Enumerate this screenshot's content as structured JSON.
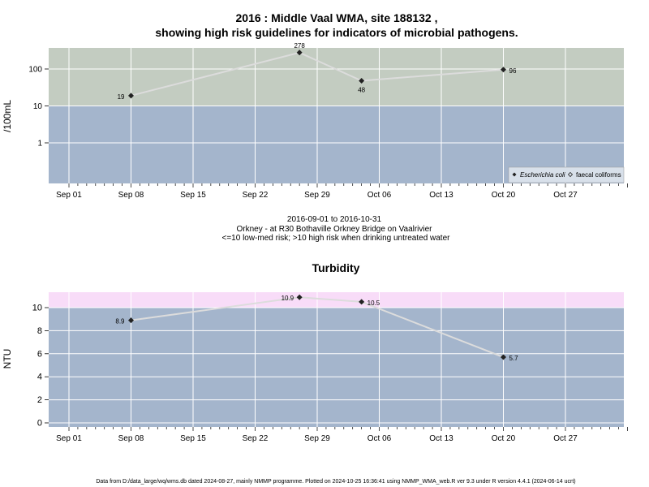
{
  "chart_data": [
    {
      "type": "line",
      "title": "2016 : Middle Vaal WMA, site 188132 ,",
      "subtitle": "showing high risk guidelines for indicators of microbial pathogens.",
      "ylabel": "/100mL",
      "xlabel": "",
      "yscale": "log",
      "x_ticks": [
        "Sep 01",
        "Sep 08",
        "Sep 15",
        "Sep 22",
        "Sep 29",
        "Oct 06",
        "Oct 13",
        "Oct 20",
        "Oct 27"
      ],
      "y_ticks": [
        {
          "value": 1,
          "label": "1"
        },
        {
          "value": 10,
          "label": "10"
        },
        {
          "value": 100,
          "label": "100"
        }
      ],
      "threshold": 10,
      "colors": {
        "below": "#a4b5cc",
        "above": "#c3ccc1",
        "line": "#dcdcdc",
        "marker": "#222222"
      },
      "series": [
        {
          "name": "Escherichia coli",
          "marker": "filled-diamond",
          "points": [
            {
              "x": "2016-09-08",
              "y": 19,
              "label": "19"
            },
            {
              "x": "2016-09-27",
              "y": 278,
              "label": "278"
            },
            {
              "x": "2016-10-04",
              "y": 48,
              "label": "48"
            },
            {
              "x": "2016-10-20",
              "y": 96,
              "label": "96"
            }
          ]
        },
        {
          "name": "faecal coliforms",
          "marker": "open-diamond",
          "points": []
        }
      ],
      "legend": "bottom-right",
      "grid": true
    },
    {
      "type": "line",
      "title": "Turbidity",
      "ylabel": "NTU",
      "xlabel": "",
      "ylim": [
        -0.5,
        11.4
      ],
      "x_ticks": [
        "Sep 01",
        "Sep 08",
        "Sep 15",
        "Sep 22",
        "Sep 29",
        "Oct 06",
        "Oct 13",
        "Oct 20",
        "Oct 27"
      ],
      "y_ticks": [
        {
          "value": 0,
          "label": "0"
        },
        {
          "value": 2,
          "label": "2"
        },
        {
          "value": 4,
          "label": "4"
        },
        {
          "value": 6,
          "label": "6"
        },
        {
          "value": 8,
          "label": "8"
        },
        {
          "value": 10,
          "label": "10"
        }
      ],
      "threshold": 10,
      "colors": {
        "below": "#a4b5cc",
        "above": "#f8dcf8",
        "line": "#dcdcdc",
        "marker": "#222222"
      },
      "series": [
        {
          "name": "",
          "marker": "filled-diamond",
          "points": [
            {
              "x": "2016-09-08",
              "y": 8.9,
              "label": "8.9"
            },
            {
              "x": "2016-09-27",
              "y": 10.9,
              "label": "10.9"
            },
            {
              "x": "2016-10-04",
              "y": 10.5,
              "label": "10.5"
            },
            {
              "x": "2016-10-20",
              "y": 5.7,
              "label": "5.7"
            }
          ]
        }
      ],
      "grid": true
    }
  ],
  "captions": {
    "date_range": "2016-09-01 to 2016-10-31",
    "site": "Orkney - at R30 Bothaville Orkney Bridge on Vaalrivier",
    "risk": "<=10 low-med risk; >10 high risk when drinking untreated water"
  },
  "footer": "Data from D:/data_large/wq/wms.db dated 2024-08-27, mainly NMMP programme. Plotted on 2024-10-25 16:36:41 using NMMP_WMA_web.R ver 9.3 under R version 4.4.1 (2024-06-14 ucrt)"
}
